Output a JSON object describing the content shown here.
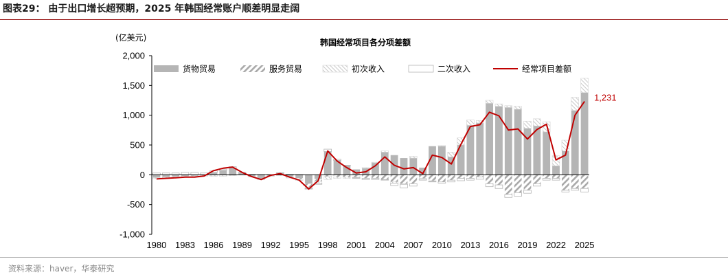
{
  "header": {
    "figure_title": "图表29：  由于出口增长超预期，2025 年韩国经常账户顺差明显走阔"
  },
  "footer": {
    "source": "资料来源：haver，华泰研究"
  },
  "colors": {
    "goods": "#b5b5b5",
    "services_hatch": "#a9a9a9",
    "primary_hatch": "#c8c8c8",
    "secondary_border": "#b5b5b5",
    "current_account": "#c00000",
    "rule": "#9b1c1c"
  },
  "chart_data": {
    "type": "bar",
    "stacked": true,
    "title": "韩国经常项目各分项差额",
    "ylabel": "(亿美元)",
    "ylim": [
      -1000,
      2000
    ],
    "yticks": [
      -1000,
      -500,
      0,
      500,
      1000,
      1500,
      2000
    ],
    "ytick_labels": [
      "-1,000",
      "-500",
      "0",
      "500",
      "1,000",
      "1,500",
      "2,000"
    ],
    "xtick_labels": [
      "1980",
      "1983",
      "1986",
      "1989",
      "1992",
      "1995",
      "1998",
      "2001",
      "2004",
      "2007",
      "2010",
      "2013",
      "2016",
      "2019",
      "2022",
      "2025"
    ],
    "categories": [
      "1980",
      "1981",
      "1982",
      "1983",
      "1984",
      "1985",
      "1986",
      "1987",
      "1988",
      "1989",
      "1990",
      "1991",
      "1992",
      "1993",
      "1994",
      "1995",
      "1996",
      "1997",
      "1998",
      "1999",
      "2000",
      "2001",
      "2002",
      "2003",
      "2004",
      "2005",
      "2006",
      "2007",
      "2008",
      "2009",
      "2010",
      "2011",
      "2012",
      "2013",
      "2014",
      "2015",
      "2016",
      "2017",
      "2018",
      "2019",
      "2020",
      "2021",
      "2022",
      "2023",
      "2024",
      "2025"
    ],
    "legend_position": "top",
    "series": [
      {
        "name": "货物贸易",
        "kind": "bar-solid",
        "values": [
          -45,
          -35,
          -25,
          -20,
          -15,
          0,
          40,
          75,
          115,
          30,
          -25,
          -70,
          -15,
          25,
          -30,
          -55,
          -150,
          -70,
          390,
          240,
          150,
          90,
          110,
          200,
          380,
          330,
          280,
          280,
          120,
          480,
          480,
          300,
          500,
          830,
          870,
          1200,
          1150,
          1130,
          1100,
          780,
          820,
          720,
          150,
          400,
          1080,
          1380
        ]
      },
      {
        "name": "服务贸易",
        "kind": "bar-hatch",
        "values": [
          -5,
          -5,
          -5,
          -5,
          -5,
          -5,
          -5,
          -5,
          -5,
          -5,
          -5,
          -5,
          -5,
          -5,
          -10,
          -20,
          -60,
          -40,
          -30,
          -40,
          -40,
          -40,
          -60,
          -60,
          -80,
          -120,
          -150,
          -150,
          -60,
          -100,
          -120,
          -90,
          -60,
          -60,
          -35,
          -150,
          -170,
          -330,
          -300,
          -260,
          -150,
          -60,
          -60,
          -260,
          -230,
          -230
        ]
      },
      {
        "name": "初次收入",
        "kind": "bar-hatch-light",
        "values": [
          -15,
          -20,
          -15,
          -15,
          -15,
          -20,
          -20,
          -20,
          -10,
          0,
          -5,
          -5,
          -5,
          -10,
          -15,
          -20,
          -20,
          -30,
          -50,
          -20,
          -20,
          -10,
          10,
          10,
          20,
          -20,
          -10,
          30,
          -10,
          -10,
          10,
          80,
          120,
          90,
          40,
          50,
          40,
          30,
          50,
          120,
          120,
          170,
          170,
          180,
          220,
          240
        ]
      },
      {
        "name": "二次收入",
        "kind": "bar-outline",
        "values": [
          30,
          30,
          30,
          40,
          40,
          30,
          25,
          20,
          20,
          10,
          10,
          5,
          5,
          10,
          10,
          5,
          -10,
          -20,
          40,
          20,
          10,
          -10,
          -20,
          -20,
          -10,
          -40,
          -60,
          -40,
          -20,
          -10,
          -20,
          -30,
          -40,
          -30,
          -40,
          -50,
          -60,
          -50,
          -60,
          -50,
          -40,
          -30,
          -30,
          -30,
          -30,
          -60
        ]
      },
      {
        "name": "经常项目差额",
        "kind": "line",
        "values": [
          -70,
          -60,
          -50,
          -40,
          -40,
          -20,
          70,
          110,
          130,
          40,
          -30,
          -80,
          -10,
          20,
          -40,
          -90,
          -240,
          -100,
          400,
          230,
          120,
          30,
          50,
          150,
          300,
          160,
          100,
          120,
          20,
          330,
          290,
          180,
          510,
          810,
          840,
          1050,
          990,
          750,
          770,
          600,
          760,
          850,
          250,
          330,
          1000,
          1231
        ]
      }
    ],
    "annotations": [
      {
        "text": "1,231",
        "category": "2025",
        "series": "经常项目差额"
      }
    ]
  }
}
